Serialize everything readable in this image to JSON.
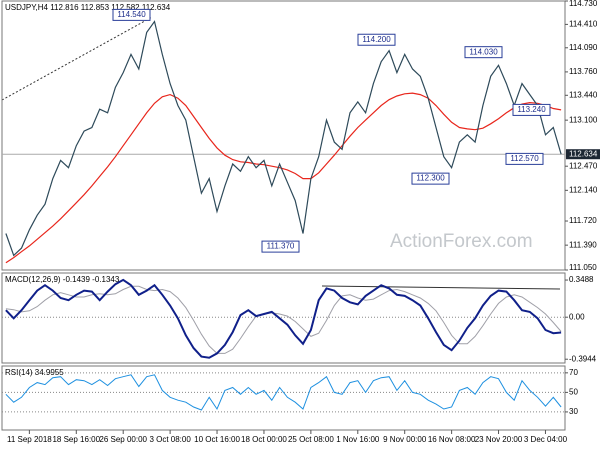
{
  "chart_data": [
    {
      "type": "line",
      "title": "USDJPY,H4  112.816 112.853 112.582 112.634",
      "watermark": "ActionForex.com",
      "categories": [
        null,
        null,
        null,
        "11 Sep 2018",
        null,
        null,
        null,
        null,
        null,
        "18 Sep 16:00",
        null,
        null,
        null,
        null,
        null,
        "26 Sep 00:00",
        null,
        null,
        null,
        null,
        null,
        "3 Oct 08:00",
        null,
        null,
        null,
        null,
        null,
        "10 Oct 16:00",
        null,
        null,
        null,
        null,
        null,
        "18 Oct 00:00",
        null,
        null,
        null,
        null,
        null,
        "25 Oct 08:00",
        null,
        null,
        null,
        null,
        null,
        "1 Nov 16:00",
        null,
        null,
        null,
        null,
        null,
        "9 Nov 00:00",
        null,
        null,
        null,
        null,
        null,
        "16 Nov 08:00",
        null,
        null,
        null,
        null,
        null,
        "23 Nov 20:00",
        null,
        null,
        null,
        null,
        null,
        "3 Dec 04:00",
        null,
        null
      ],
      "series": [
        {
          "color": "#2e4a5a",
          "values": [
            111.55,
            111.25,
            111.35,
            111.6,
            111.8,
            111.95,
            112.3,
            112.55,
            112.45,
            112.75,
            112.95,
            113.0,
            113.25,
            113.2,
            113.55,
            113.75,
            114.0,
            113.8,
            114.3,
            114.45,
            114.0,
            113.6,
            113.3,
            113.1,
            112.6,
            112.1,
            112.3,
            111.85,
            112.2,
            112.5,
            112.4,
            112.6,
            112.45,
            112.55,
            112.2,
            112.5,
            112.25,
            112.0,
            111.55,
            112.3,
            112.6,
            113.1,
            112.8,
            112.7,
            113.2,
            113.35,
            113.2,
            113.6,
            113.9,
            114.05,
            113.75,
            114.0,
            113.8,
            113.7,
            113.4,
            113.0,
            112.6,
            112.45,
            112.8,
            112.9,
            112.8,
            113.3,
            113.7,
            113.85,
            113.6,
            113.3,
            113.6,
            113.45,
            113.3,
            112.9,
            113.0,
            112.634
          ]
        },
        {
          "color": "#e8261c",
          "values": [
            111.15,
            111.22,
            111.3,
            111.38,
            111.47,
            111.56,
            111.65,
            111.75,
            111.86,
            111.97,
            112.08,
            112.2,
            112.33,
            112.46,
            112.6,
            112.75,
            112.9,
            113.05,
            113.2,
            113.33,
            113.42,
            113.45,
            113.4,
            113.3,
            113.15,
            113.0,
            112.85,
            112.72,
            112.62,
            112.56,
            112.53,
            112.52,
            112.5,
            112.49,
            112.47,
            112.45,
            112.42,
            112.37,
            112.3,
            112.3,
            112.38,
            112.5,
            112.62,
            112.75,
            112.88,
            113.0,
            113.1,
            113.2,
            113.3,
            113.38,
            113.43,
            113.46,
            113.47,
            113.45,
            113.4,
            113.3,
            113.18,
            113.07,
            113.0,
            112.98,
            112.97,
            112.99,
            113.05,
            113.12,
            113.2,
            113.27,
            113.32,
            113.34,
            113.33,
            113.3,
            113.26,
            113.24
          ]
        }
      ],
      "ylim": [
        111.05,
        114.73
      ],
      "yticks": [
        {
          "value": 114.73,
          "label": "114.730"
        },
        {
          "value": 114.41,
          "label": "114.410"
        },
        {
          "value": 114.09,
          "label": "114.090"
        },
        {
          "value": 113.76,
          "label": "113.760"
        },
        {
          "value": 113.44,
          "label": "113.440"
        },
        {
          "value": 113.1,
          "label": "113.100"
        },
        {
          "value": 112.47,
          "label": "112.470"
        },
        {
          "value": 112.14,
          "label": "112.140"
        },
        {
          "value": 111.72,
          "label": "111.720"
        },
        {
          "value": 111.39,
          "label": "111.390"
        },
        {
          "value": 111.05,
          "label": "111.050"
        }
      ],
      "last_price": {
        "value": 112.634,
        "label": "112.634"
      },
      "annotations": [
        {
          "value": 114.54,
          "label": "114.540"
        },
        {
          "value": 114.2,
          "label": "114.200"
        },
        {
          "value": 114.03,
          "label": "114.030"
        },
        {
          "value": 113.24,
          "label": "113.240"
        },
        {
          "value": 112.57,
          "label": "112.570"
        },
        {
          "value": 112.3,
          "label": "112.300"
        },
        {
          "value": 111.37,
          "label": "111.370"
        }
      ],
      "grid": false
    },
    {
      "type": "line",
      "title": "MACD(12,26,9) -0.1439 -0.1343",
      "series": [
        {
          "color": "#10208a",
          "values": [
            0.066,
            -0.01,
            0.066,
            0.16,
            0.25,
            0.3,
            0.25,
            0.18,
            0.16,
            0.21,
            0.25,
            0.24,
            0.16,
            0.24,
            0.31,
            0.35,
            0.3,
            0.21,
            0.25,
            0.3,
            0.21,
            0.11,
            -0.01,
            -0.17,
            -0.29,
            -0.37,
            -0.38,
            -0.34,
            -0.26,
            -0.14,
            0.02,
            0.066,
            0.01,
            0.03,
            0.05,
            -0.01,
            -0.07,
            -0.17,
            -0.25,
            -0.12,
            0.16,
            0.27,
            0.25,
            0.18,
            0.14,
            0.12,
            0.2,
            0.25,
            0.3,
            0.27,
            0.21,
            0.2,
            0.16,
            0.11,
            -0.01,
            -0.14,
            -0.26,
            -0.31,
            -0.22,
            -0.1,
            -0.01,
            0.11,
            0.2,
            0.25,
            0.24,
            0.16,
            0.066,
            0.05,
            -0.01,
            -0.12,
            -0.15,
            -0.1439
          ]
        },
        {
          "color": "#a0a0a8",
          "values": [
            0.08,
            0.07,
            0.05,
            0.06,
            0.1,
            0.16,
            0.21,
            0.23,
            0.21,
            0.19,
            0.19,
            0.21,
            0.22,
            0.21,
            0.22,
            0.26,
            0.29,
            0.29,
            0.26,
            0.25,
            0.26,
            0.24,
            0.18,
            0.09,
            -0.03,
            -0.16,
            -0.27,
            -0.34,
            -0.34,
            -0.3,
            -0.2,
            -0.09,
            0.01,
            0.03,
            0.04,
            0.03,
            0.01,
            -0.04,
            -0.11,
            -0.18,
            -0.15,
            -0.03,
            0.11,
            0.2,
            0.21,
            0.18,
            0.16,
            0.17,
            0.21,
            0.25,
            0.26,
            0.24,
            0.21,
            0.18,
            0.13,
            0.06,
            -0.05,
            -0.17,
            -0.25,
            -0.25,
            -0.18,
            -0.08,
            0.03,
            0.13,
            0.19,
            0.21,
            0.19,
            0.14,
            0.09,
            0.03,
            -0.05,
            -0.1343
          ]
        }
      ],
      "ylim": [
        -0.43,
        0.415
      ],
      "yticks": [
        0.3488,
        {
          "value": 0,
          "label": "0.00"
        },
        -0.3944
      ],
      "zero_line": true
    },
    {
      "type": "line",
      "title": "RSI(14) 34.9955",
      "series": [
        {
          "color": "#1e90e0",
          "values": [
            48,
            40,
            45,
            55,
            60,
            58,
            65,
            66,
            58,
            63,
            62,
            58,
            63,
            57,
            64,
            66,
            68,
            56,
            66,
            68,
            52,
            45,
            42,
            40,
            35,
            32,
            45,
            33,
            52,
            55,
            48,
            55,
            48,
            52,
            42,
            55,
            45,
            40,
            33,
            55,
            60,
            66,
            50,
            48,
            60,
            62,
            50,
            62,
            65,
            66,
            52,
            62,
            50,
            48,
            42,
            38,
            33,
            35,
            52,
            55,
            48,
            60,
            66,
            64,
            50,
            42,
            62,
            52,
            45,
            36,
            45,
            34.9955
          ]
        }
      ],
      "ylim": [
        11.5,
        77
      ],
      "yticks": [
        70,
        50,
        30
      ],
      "grid": true
    }
  ]
}
